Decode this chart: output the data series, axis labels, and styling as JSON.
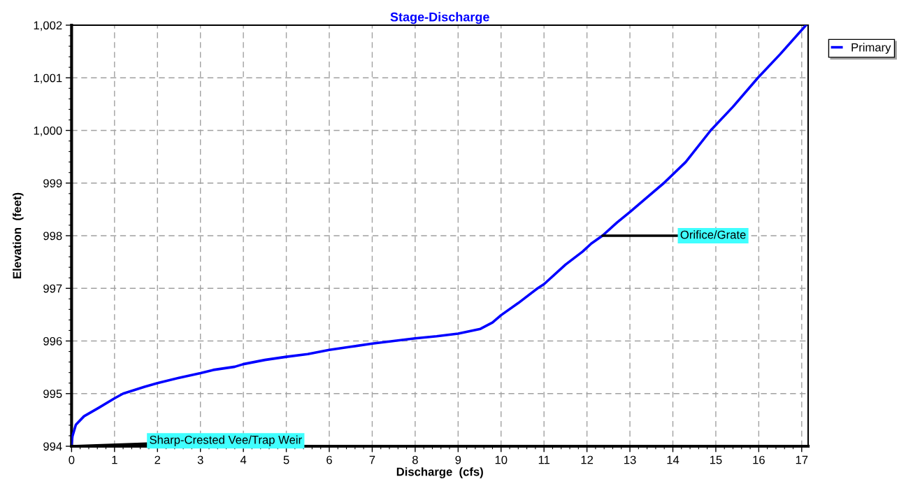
{
  "chart_data": {
    "type": "line",
    "title": "Stage-Discharge",
    "xlabel": "Discharge  (cfs)",
    "ylabel": "Elevation  (feet)",
    "series": [
      {
        "name": "Primary",
        "color": "#0000ff",
        "x": [
          0,
          0.02,
          0.1,
          0.29,
          0.63,
          1.0,
          1.2,
          1.7,
          2.0,
          2.5,
          3.0,
          3.3,
          3.8,
          4.0,
          4.5,
          5.0,
          5.5,
          6.0,
          6.5,
          7.0,
          7.5,
          8.0,
          8.5,
          9.0,
          9.52,
          9.8,
          10.0,
          10.4,
          10.85,
          11.0,
          11.5,
          11.9,
          12.1,
          12.36,
          12.7,
          13.0,
          13.4,
          13.79,
          14.3,
          14.88,
          15.4,
          15.98,
          16.5,
          17.1
        ],
        "values": [
          994.05,
          994.19,
          994.41,
          994.57,
          994.73,
          994.91,
          995.0,
          995.13,
          995.2,
          995.3,
          995.39,
          995.45,
          995.51,
          995.56,
          995.64,
          995.7,
          995.75,
          995.83,
          995.89,
          995.95,
          996.0,
          996.05,
          996.09,
          996.14,
          996.23,
          996.35,
          996.49,
          996.72,
          997.0,
          997.08,
          997.45,
          997.7,
          997.85,
          998.0,
          998.25,
          998.45,
          998.73,
          999.0,
          999.4,
          1000.0,
          1000.45,
          1001.0,
          1001.45,
          1002.0
        ]
      }
    ],
    "annotations": [
      {
        "text": "Sharp-Crested Vee/Trap Weir",
        "x": 0,
        "y": 994
      },
      {
        "text": "Orifice/Grate",
        "x": 12.36,
        "y": 998
      }
    ],
    "xlim": [
      0,
      17.15
    ],
    "xticks": [
      0,
      1,
      2,
      3,
      4,
      5,
      6,
      7,
      8,
      9,
      10,
      11,
      12,
      13,
      14,
      15,
      16,
      17
    ],
    "ylim": [
      994,
      1002
    ],
    "yticks": [
      994,
      995,
      996,
      997,
      998,
      999,
      {
        "value": 1000,
        "label": "1,000"
      },
      {
        "value": 1001,
        "label": "1,001"
      },
      {
        "value": 1002,
        "label": "1,002"
      }
    ],
    "grid": true,
    "legend": "top right",
    "line_style": "solid",
    "marker": "none"
  }
}
